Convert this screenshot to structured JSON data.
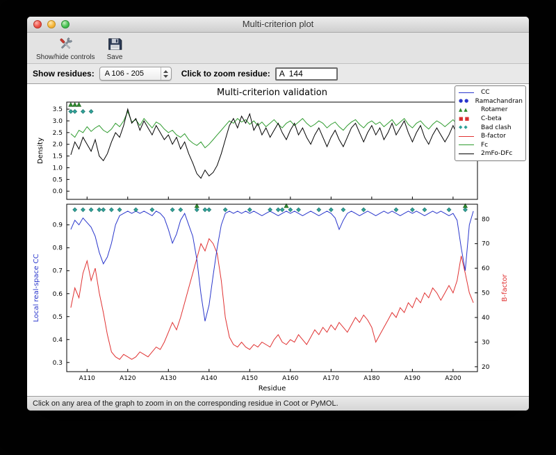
{
  "window": {
    "title": "Multi-criterion plot"
  },
  "toolbar": {
    "show_hide_label": "Show/hide controls",
    "save_label": "Save"
  },
  "controls": {
    "show_residues_label": "Show residues:",
    "residues_value": "A 106 - 205",
    "zoom_label": "Click to zoom residue:",
    "zoom_value": "A  144"
  },
  "statusbar": {
    "text": "Click on any area of the graph to zoom in on the corresponding residue in Coot or PyMOL."
  },
  "chart_data": {
    "type": "line",
    "title": "Multi-criterion validation",
    "xlabel": "Residue",
    "x_start": 106,
    "x_range": [
      105,
      206
    ],
    "x_tick_values": [
      110,
      120,
      130,
      140,
      150,
      160,
      170,
      180,
      190,
      200
    ],
    "x_tick_labels": [
      "A110",
      "A120",
      "A130",
      "A140",
      "A150",
      "A160",
      "A170",
      "A180",
      "A190",
      "A200"
    ],
    "marker_colors": {
      "bad_clash": "#2fa198",
      "bad_clash_edge": "#1d7068",
      "rotamer": "#2e8b2e",
      "rotamer_edge": "#1d5c1d",
      "cbeta": "#d93030"
    },
    "top_plot": {
      "ylabel": "Density",
      "ylim": [
        -0.35,
        3.8
      ],
      "yticks": [
        0.0,
        0.5,
        1.0,
        1.5,
        2.0,
        2.5,
        3.0,
        3.5
      ],
      "series": [
        {
          "name": "Fc",
          "color": "#2e9b2e",
          "values": [
            2.45,
            2.3,
            2.6,
            2.5,
            2.75,
            2.55,
            2.7,
            2.8,
            2.6,
            2.5,
            2.65,
            2.9,
            2.75,
            3.0,
            3.4,
            2.95,
            3.05,
            2.8,
            3.1,
            2.9,
            2.7,
            2.95,
            2.85,
            2.65,
            2.5,
            2.6,
            2.4,
            2.3,
            2.45,
            2.2,
            2.05,
            1.95,
            2.1,
            1.85,
            2.0,
            2.2,
            2.4,
            2.6,
            2.8,
            3.0,
            2.9,
            3.1,
            2.95,
            3.05,
            2.85,
            3.0,
            2.8,
            2.95,
            2.75,
            2.9,
            3.05,
            2.85,
            2.7,
            2.9,
            3.0,
            2.8,
            2.95,
            3.1,
            2.9,
            2.75,
            2.85,
            3.0,
            2.9,
            2.7,
            2.85,
            2.95,
            2.75,
            2.6,
            2.8,
            2.95,
            3.05,
            2.85,
            2.7,
            2.9,
            3.0,
            2.85,
            2.95,
            2.75,
            2.9,
            3.05,
            2.8,
            2.95,
            3.1,
            2.85,
            2.7,
            2.9,
            3.0,
            2.8,
            2.65,
            2.85,
            3.0,
            2.9,
            2.75,
            2.9,
            3.05,
            2.85,
            2.6,
            2.8,
            2.95,
            2.5
          ]
        },
        {
          "name": "2mFo-DFc",
          "color": "#000000",
          "values": [
            1.55,
            2.1,
            1.8,
            2.3,
            2.0,
            1.7,
            2.2,
            1.5,
            1.3,
            1.6,
            2.1,
            2.5,
            2.3,
            2.8,
            3.5,
            2.9,
            3.1,
            2.6,
            3.0,
            2.7,
            2.4,
            2.8,
            2.5,
            2.2,
            2.4,
            2.0,
            2.3,
            1.8,
            2.1,
            1.6,
            1.2,
            0.75,
            0.55,
            0.9,
            0.65,
            0.8,
            1.1,
            1.6,
            2.2,
            2.8,
            3.1,
            2.7,
            3.2,
            2.9,
            3.3,
            2.6,
            2.9,
            2.4,
            2.7,
            2.3,
            2.6,
            2.9,
            2.5,
            2.2,
            2.6,
            2.9,
            2.4,
            2.7,
            2.3,
            2.0,
            2.4,
            2.7,
            2.3,
            1.9,
            2.3,
            2.6,
            2.2,
            1.9,
            2.3,
            2.7,
            2.9,
            2.5,
            2.1,
            2.5,
            2.8,
            2.4,
            2.7,
            2.2,
            2.5,
            2.9,
            2.4,
            2.7,
            3.0,
            2.5,
            2.1,
            2.5,
            2.8,
            2.3,
            2.0,
            2.4,
            2.7,
            2.4,
            2.1,
            2.4,
            2.8,
            2.4,
            2.0,
            2.4,
            2.6,
            2.2
          ]
        }
      ],
      "markers": {
        "rotamer": [
          106,
          107,
          108
        ],
        "bad_clash": [
          106,
          107,
          109,
          111
        ]
      }
    },
    "bottom_plot": {
      "ylabel_left": "Local real-space CC",
      "ylabel_left_color": "#2936cc",
      "ylim_left": [
        0.26,
        0.99
      ],
      "yticks_left": [
        0.3,
        0.4,
        0.5,
        0.6,
        0.7,
        0.8,
        0.9
      ],
      "ylabel_right": "B-factor",
      "ylabel_right_color": "#e03131",
      "ylim_right": [
        18,
        86
      ],
      "yticks_right": [
        20,
        30,
        40,
        50,
        60,
        70,
        80
      ],
      "series_left": {
        "name": "CC",
        "color": "#2936cc",
        "values": [
          0.88,
          0.92,
          0.9,
          0.93,
          0.91,
          0.89,
          0.85,
          0.78,
          0.73,
          0.76,
          0.82,
          0.9,
          0.94,
          0.95,
          0.96,
          0.95,
          0.96,
          0.95,
          0.96,
          0.95,
          0.94,
          0.96,
          0.95,
          0.93,
          0.88,
          0.82,
          0.86,
          0.92,
          0.95,
          0.9,
          0.85,
          0.75,
          0.6,
          0.48,
          0.55,
          0.68,
          0.8,
          0.9,
          0.95,
          0.96,
          0.95,
          0.96,
          0.95,
          0.96,
          0.95,
          0.96,
          0.95,
          0.94,
          0.95,
          0.96,
          0.95,
          0.94,
          0.95,
          0.96,
          0.95,
          0.96,
          0.95,
          0.94,
          0.95,
          0.96,
          0.95,
          0.94,
          0.95,
          0.96,
          0.95,
          0.93,
          0.88,
          0.92,
          0.95,
          0.96,
          0.95,
          0.94,
          0.95,
          0.96,
          0.95,
          0.94,
          0.95,
          0.96,
          0.95,
          0.96,
          0.95,
          0.94,
          0.95,
          0.96,
          0.95,
          0.96,
          0.95,
          0.94,
          0.95,
          0.96,
          0.95,
          0.96,
          0.95,
          0.94,
          0.95,
          0.92,
          0.8,
          0.7,
          0.9,
          0.96
        ]
      },
      "series_right": {
        "name": "B-factor",
        "color": "#e03131",
        "values": [
          44,
          52,
          48,
          58,
          63,
          55,
          60,
          50,
          42,
          33,
          26,
          24,
          23,
          25,
          24,
          23,
          24,
          26,
          25,
          24,
          26,
          28,
          27,
          30,
          34,
          38,
          35,
          40,
          46,
          52,
          58,
          64,
          70,
          67,
          72,
          70,
          66,
          55,
          40,
          32,
          29,
          28,
          30,
          28,
          27,
          29,
          28,
          30,
          29,
          28,
          31,
          33,
          30,
          29,
          31,
          30,
          33,
          31,
          29,
          32,
          35,
          33,
          36,
          34,
          37,
          35,
          38,
          36,
          34,
          37,
          40,
          38,
          41,
          39,
          36,
          30,
          33,
          36,
          39,
          42,
          40,
          44,
          42,
          46,
          44,
          48,
          46,
          50,
          48,
          52,
          50,
          47,
          50,
          53,
          50,
          55,
          65,
          58,
          50,
          46
        ]
      },
      "markers": {
        "rotamer": [
          137,
          159,
          203
        ],
        "bad_clash": [
          107,
          109,
          111,
          113,
          114,
          116,
          118,
          122,
          126,
          131,
          133,
          137,
          139,
          140,
          144,
          150,
          155,
          157,
          158,
          160,
          162,
          167,
          170,
          173,
          178,
          186,
          190,
          193,
          199,
          203
        ],
        "cbeta": []
      }
    },
    "legend": [
      {
        "label": "CC",
        "glyph": "line",
        "color": "#2936cc"
      },
      {
        "label": "Ramachandran",
        "glyph": "circles",
        "color": "#2936cc"
      },
      {
        "label": "Rotamer",
        "glyph": "triangles",
        "color": "#2e8b2e"
      },
      {
        "label": "C-beta",
        "glyph": "squares",
        "color": "#d93030"
      },
      {
        "label": "Bad clash",
        "glyph": "diamonds",
        "color": "#2fa198"
      },
      {
        "label": "B-factor",
        "glyph": "line",
        "color": "#e03131"
      },
      {
        "label": "Fc",
        "glyph": "line",
        "color": "#2e9b2e"
      },
      {
        "label": "2mFo-DFc",
        "glyph": "line",
        "color": "#000000"
      }
    ],
    "legend_position": "upper right",
    "grid": false
  }
}
